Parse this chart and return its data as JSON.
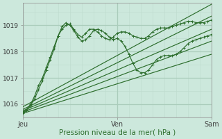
{
  "background_color": "#cce8dc",
  "grid_major_color": "#aaccbb",
  "grid_minor_color": "#c0ddd0",
  "line_color": "#2d6e2d",
  "xlabel": "Pression niveau de la mer( hPa )",
  "xlabel_color": "#2d6e2d",
  "ylim": [
    1015.5,
    1019.85
  ],
  "xlim": [
    0,
    48
  ],
  "yticks": [
    1016,
    1017,
    1018,
    1019
  ],
  "xtick_positions": [
    0,
    24,
    48
  ],
  "xtick_labels": [
    "Jeu",
    "Ven",
    "Sam"
  ],
  "series": [
    {
      "x": [
        0,
        1,
        2,
        3,
        4,
        5,
        6,
        7,
        8,
        9,
        10,
        11,
        12,
        13,
        14,
        15,
        16,
        17,
        18,
        19,
        20,
        21,
        22,
        23,
        24,
        25,
        26,
        27,
        28,
        29,
        30,
        31,
        32,
        33,
        34,
        35,
        36,
        37,
        38,
        39,
        40,
        41,
        42,
        43,
        44,
        45,
        46,
        47,
        48
      ],
      "y": [
        1015.7,
        1015.8,
        1016.0,
        1016.3,
        1016.7,
        1017.0,
        1017.4,
        1017.8,
        1018.2,
        1018.6,
        1018.85,
        1019.0,
        1019.05,
        1018.85,
        1018.65,
        1018.55,
        1018.7,
        1018.85,
        1018.85,
        1018.75,
        1018.6,
        1018.5,
        1018.45,
        1018.55,
        1018.7,
        1018.75,
        1018.75,
        1018.7,
        1018.6,
        1018.55,
        1018.5,
        1018.5,
        1018.6,
        1018.75,
        1018.85,
        1018.9,
        1018.9,
        1018.9,
        1018.95,
        1019.0,
        1019.05,
        1019.1,
        1019.15,
        1019.15,
        1019.1,
        1019.1,
        1019.1,
        1019.15,
        1019.2
      ],
      "marker": true
    },
    {
      "x": [
        0,
        1,
        2,
        3,
        4,
        5,
        6,
        7,
        8,
        9,
        10,
        11,
        12,
        13,
        14,
        15,
        16,
        17,
        18,
        19,
        20,
        21,
        22,
        23,
        24,
        25,
        26,
        27,
        28,
        29,
        30,
        31,
        32,
        33,
        34,
        35,
        36,
        37,
        38,
        39,
        40,
        41,
        42,
        43,
        44,
        45,
        46,
        47,
        48
      ],
      "y": [
        1015.65,
        1015.75,
        1015.95,
        1016.2,
        1016.55,
        1016.9,
        1017.3,
        1017.7,
        1018.1,
        1018.6,
        1018.95,
        1019.1,
        1019.0,
        1018.8,
        1018.55,
        1018.4,
        1018.45,
        1018.6,
        1018.8,
        1018.85,
        1018.8,
        1018.7,
        1018.55,
        1018.45,
        1018.5,
        1018.4,
        1018.2,
        1017.9,
        1017.55,
        1017.3,
        1017.2,
        1017.2,
        1017.3,
        1017.5,
        1017.7,
        1017.8,
        1017.85,
        1017.85,
        1017.85,
        1017.9,
        1018.0,
        1018.15,
        1018.3,
        1018.4,
        1018.45,
        1018.5,
        1018.55,
        1018.6,
        1018.65
      ],
      "marker": true
    },
    {
      "x": [
        0,
        48
      ],
      "y": [
        1015.9,
        1019.8
      ],
      "marker": false
    },
    {
      "x": [
        0,
        48
      ],
      "y": [
        1015.8,
        1019.35
      ],
      "marker": false
    },
    {
      "x": [
        0,
        48
      ],
      "y": [
        1015.75,
        1018.85
      ],
      "marker": false
    },
    {
      "x": [
        0,
        48
      ],
      "y": [
        1015.7,
        1018.4
      ],
      "marker": false
    },
    {
      "x": [
        0,
        48
      ],
      "y": [
        1015.65,
        1017.9
      ],
      "marker": false
    }
  ]
}
